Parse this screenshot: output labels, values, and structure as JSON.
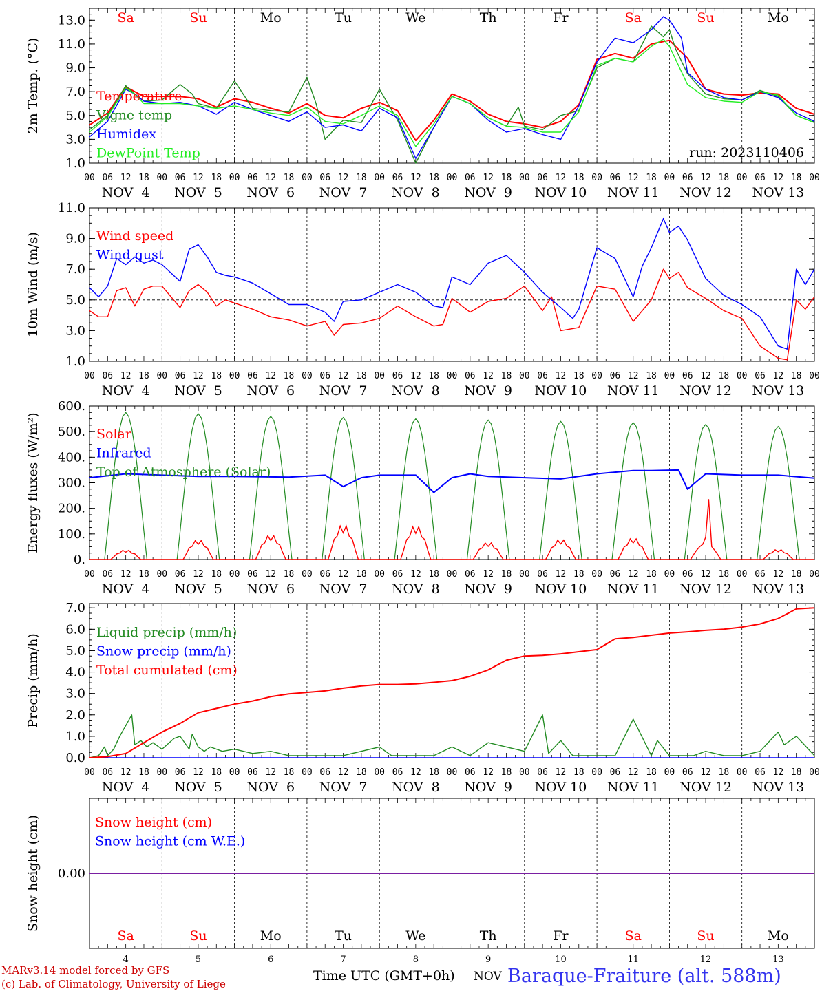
{
  "colors": {
    "red": "#ff0000",
    "green": "#228b22",
    "blue": "#0000ff",
    "lightgreen": "#22ee22",
    "purple": "#7a1fa2",
    "darkred": "#cc0000",
    "title_blue": "#3333ee",
    "axis": "#000000"
  },
  "days": [
    {
      "abbr": "Sa",
      "weekend": true,
      "date": "4"
    },
    {
      "abbr": "Su",
      "weekend": true,
      "date": "5"
    },
    {
      "abbr": "Mo",
      "weekend": false,
      "date": "6"
    },
    {
      "abbr": "Tu",
      "weekend": false,
      "date": "7"
    },
    {
      "abbr": "We",
      "weekend": false,
      "date": "8"
    },
    {
      "abbr": "Th",
      "weekend": false,
      "date": "9"
    },
    {
      "abbr": "Fr",
      "weekend": false,
      "date": "10"
    },
    {
      "abbr": "Sa",
      "weekend": true,
      "date": "11"
    },
    {
      "abbr": "Su",
      "weekend": true,
      "date": "12"
    },
    {
      "abbr": "Mo",
      "weekend": false,
      "date": "13"
    }
  ],
  "date_labels": [
    "NOV  4",
    "NOV  5",
    "NOV  6",
    "NOV  7",
    "NOV  8",
    "NOV  9",
    "NOV 10",
    "NOV 11",
    "NOV 12",
    "NOV 13"
  ],
  "hour_ticks": [
    "00",
    "06",
    "12",
    "18"
  ],
  "hour_end": "00",
  "run_label": "run: 2023110406",
  "footer": {
    "model": "MARv3.14 model forced by GFS",
    "lab": "(c) Lab. of Climatology, University of Liege",
    "time_axis": "Time UTC (GMT+0h)",
    "month": "NOV",
    "station": "Baraque-Fraiture (alt. 588m)"
  },
  "chart_data": [
    {
      "type": "line",
      "id": "temperature",
      "ylabel": "2m Temp. (°C)",
      "ylim": [
        1.0,
        14.0
      ],
      "ytick_labels": [
        "1.0",
        "3.0",
        "5.0",
        "7.0",
        "9.0",
        "11.0",
        "13.0"
      ],
      "ytick_values": [
        1,
        3,
        5,
        7,
        9,
        11,
        13
      ],
      "x_unit": "hours since NOV 4 00 UTC",
      "series": [
        {
          "name": "Temperature",
          "color": "red",
          "x": [
            0,
            6,
            12,
            15,
            18,
            24,
            30,
            36,
            42,
            48,
            54,
            60,
            66,
            72,
            78,
            84,
            90,
            96,
            102,
            108,
            114,
            120,
            126,
            132,
            138,
            144,
            150,
            156,
            162,
            168,
            174,
            180,
            186,
            192,
            198,
            204,
            210,
            216,
            222,
            228,
            234,
            240
          ],
          "y": [
            4.2,
            5.2,
            7.4,
            7.0,
            6.6,
            6.6,
            6.6,
            6.4,
            5.7,
            6.4,
            6.1,
            5.6,
            5.2,
            6.0,
            5.0,
            4.8,
            5.6,
            6.1,
            5.4,
            2.9,
            4.6,
            6.8,
            6.2,
            5.1,
            4.5,
            4.3,
            4.0,
            4.5,
            5.9,
            9.7,
            10.2,
            9.8,
            11.0,
            11.3,
            9.8,
            7.2,
            6.8,
            6.7,
            6.9,
            6.8,
            5.6,
            5.1
          ]
        },
        {
          "name": "Vigne temp",
          "color": "green",
          "x": [
            0,
            6,
            12,
            15,
            18,
            24,
            30,
            34,
            36,
            42,
            48,
            54,
            60,
            66,
            72,
            75,
            78,
            84,
            90,
            96,
            102,
            108,
            114,
            120,
            126,
            132,
            138,
            142,
            144,
            150,
            156,
            162,
            168,
            174,
            180,
            186,
            190,
            192,
            194,
            198,
            204,
            210,
            216,
            222,
            228,
            234,
            240
          ],
          "y": [
            3.8,
            5.0,
            7.5,
            6.8,
            6.2,
            6.3,
            7.6,
            6.8,
            6.0,
            5.6,
            7.9,
            5.6,
            5.4,
            5.3,
            8.2,
            6.0,
            3.0,
            4.6,
            4.4,
            7.2,
            4.6,
            1.0,
            4.0,
            6.6,
            6.0,
            4.8,
            4.1,
            5.7,
            4.1,
            3.8,
            5.0,
            5.4,
            9.0,
            9.8,
            9.5,
            12.5,
            11.6,
            12.2,
            10.6,
            8.5,
            6.8,
            6.4,
            6.3,
            7.1,
            6.6,
            5.0,
            4.4
          ]
        },
        {
          "name": "Humidex",
          "color": "blue",
          "x": [
            0,
            6,
            12,
            15,
            18,
            24,
            30,
            36,
            42,
            48,
            54,
            60,
            66,
            72,
            78,
            84,
            90,
            96,
            102,
            108,
            114,
            120,
            126,
            132,
            138,
            144,
            150,
            156,
            162,
            168,
            174,
            180,
            186,
            190,
            192,
            196,
            198,
            204,
            210,
            216,
            222,
            228,
            234,
            240
          ],
          "y": [
            3.2,
            4.5,
            7.2,
            6.8,
            6.2,
            6.0,
            6.1,
            5.8,
            5.1,
            6.1,
            5.5,
            5.0,
            4.5,
            5.3,
            4.0,
            4.2,
            3.7,
            5.6,
            4.8,
            1.4,
            4.0,
            6.6,
            6.0,
            4.6,
            3.6,
            3.9,
            3.4,
            3.0,
            5.8,
            9.5,
            11.5,
            11.1,
            12.2,
            13.3,
            13.0,
            11.5,
            8.6,
            7.2,
            6.5,
            6.3,
            7.0,
            6.5,
            5.2,
            4.5
          ]
        },
        {
          "name": "DewPoint Temp",
          "color": "lightgreen",
          "x": [
            0,
            6,
            12,
            15,
            18,
            24,
            30,
            36,
            42,
            48,
            54,
            60,
            66,
            72,
            78,
            84,
            90,
            96,
            102,
            108,
            114,
            120,
            126,
            132,
            138,
            144,
            150,
            156,
            162,
            168,
            174,
            180,
            186,
            190,
            192,
            198,
            204,
            210,
            216,
            222,
            228,
            234,
            240
          ],
          "y": [
            3.6,
            4.9,
            7.3,
            6.8,
            6.0,
            6.0,
            6.0,
            5.8,
            5.6,
            5.8,
            5.5,
            5.2,
            5.0,
            5.7,
            4.5,
            4.3,
            5.0,
            5.8,
            5.0,
            2.4,
            4.3,
            6.6,
            6.0,
            4.8,
            4.1,
            4.0,
            3.6,
            3.6,
            5.3,
            9.2,
            9.8,
            9.5,
            10.8,
            11.4,
            10.8,
            7.6,
            6.5,
            6.2,
            6.1,
            7.0,
            6.7,
            5.0,
            4.4
          ]
        }
      ]
    },
    {
      "type": "line",
      "id": "wind",
      "ylabel": "10m Wind (m/s)",
      "ylim": [
        1.0,
        11.0
      ],
      "ytick_labels": [
        "1.0",
        "3.0",
        "5.0",
        "7.0",
        "9.0",
        "11.0"
      ],
      "ytick_values": [
        1,
        3,
        5,
        7,
        9,
        11
      ],
      "reference_line": 5.0,
      "series": [
        {
          "name": "Wind speed",
          "color": "red",
          "x": [
            0,
            3,
            6,
            9,
            12,
            15,
            18,
            21,
            24,
            30,
            33,
            36,
            39,
            42,
            45,
            48,
            54,
            60,
            66,
            72,
            78,
            81,
            84,
            90,
            96,
            102,
            108,
            114,
            117,
            120,
            126,
            132,
            138,
            144,
            150,
            153,
            156,
            162,
            168,
            174,
            180,
            186,
            190,
            192,
            195,
            198,
            204,
            210,
            216,
            222,
            228,
            231,
            234,
            237,
            240
          ],
          "y": [
            4.3,
            3.9,
            3.9,
            5.6,
            5.8,
            4.6,
            5.7,
            5.9,
            5.9,
            4.5,
            5.6,
            6.0,
            5.5,
            4.6,
            5.0,
            4.8,
            4.4,
            3.9,
            3.7,
            3.3,
            3.6,
            2.7,
            3.4,
            3.5,
            3.8,
            4.6,
            3.9,
            3.3,
            3.4,
            5.1,
            4.2,
            4.9,
            5.1,
            5.9,
            4.3,
            5.2,
            3.0,
            3.2,
            5.9,
            5.7,
            3.6,
            5.0,
            7.0,
            6.4,
            6.8,
            5.8,
            5.1,
            4.3,
            3.8,
            2.0,
            1.2,
            1.1,
            5.0,
            4.4,
            5.2
          ]
        },
        {
          "name": "Wind gust",
          "color": "blue",
          "x": [
            0,
            3,
            6,
            9,
            12,
            15,
            18,
            21,
            24,
            30,
            33,
            36,
            39,
            42,
            45,
            48,
            54,
            60,
            66,
            72,
            78,
            81,
            84,
            90,
            96,
            102,
            108,
            114,
            117,
            120,
            126,
            132,
            138,
            144,
            150,
            153,
            156,
            160,
            162,
            168,
            174,
            180,
            183,
            186,
            190,
            192,
            195,
            198,
            204,
            210,
            216,
            222,
            228,
            231,
            234,
            237,
            240
          ],
          "y": [
            5.8,
            5.2,
            5.9,
            7.7,
            7.3,
            7.8,
            7.4,
            7.6,
            7.3,
            6.2,
            8.3,
            8.6,
            7.8,
            6.8,
            6.6,
            6.5,
            6.1,
            5.4,
            4.7,
            4.7,
            4.2,
            3.6,
            4.9,
            5.0,
            5.5,
            6.0,
            5.5,
            4.6,
            4.5,
            6.5,
            6.0,
            7.4,
            7.9,
            6.8,
            5.5,
            5.0,
            4.5,
            3.8,
            4.4,
            8.4,
            7.7,
            5.2,
            7.2,
            8.4,
            10.3,
            9.4,
            9.8,
            8.9,
            6.4,
            5.3,
            4.7,
            3.9,
            2.0,
            1.8,
            7.0,
            6.0,
            7.0
          ]
        }
      ]
    },
    {
      "type": "line",
      "id": "energy",
      "ylabel": "Energy fluxes (W/m²)",
      "ylim": [
        0,
        600
      ],
      "ytick_labels": [
        "0.",
        "100.",
        "200.",
        "300.",
        "400.",
        "500.",
        "600."
      ],
      "ytick_values": [
        0,
        100,
        200,
        300,
        400,
        500,
        600
      ],
      "toa_peaks": [
        575,
        570,
        560,
        555,
        550,
        545,
        540,
        535,
        528,
        520
      ],
      "solar_peaks": [
        38,
        78,
        98,
        138,
        135,
        68,
        80,
        85,
        248,
        40
      ],
      "series": [
        {
          "name": "Solar",
          "color": "red"
        },
        {
          "name": "Infrared",
          "color": "blue",
          "x": [
            0,
            12,
            24,
            36,
            48,
            66,
            78,
            84,
            90,
            96,
            108,
            114,
            120,
            126,
            132,
            144,
            156,
            168,
            180,
            186,
            195,
            198,
            204,
            216,
            228,
            240
          ],
          "y": [
            320,
            335,
            330,
            325,
            325,
            322,
            330,
            285,
            320,
            330,
            330,
            262,
            320,
            335,
            325,
            320,
            315,
            335,
            348,
            348,
            350,
            275,
            335,
            330,
            330,
            318
          ]
        },
        {
          "name": "Top of Atmosphere (Solar)",
          "color": "green"
        }
      ]
    },
    {
      "type": "line",
      "id": "precip",
      "ylabel": "Precip (mm/h)",
      "ylim": [
        0,
        7.2
      ],
      "ytick_labels": [
        "0.0",
        "1.0",
        "2.0",
        "3.0",
        "4.0",
        "5.0",
        "6.0",
        "7.0"
      ],
      "ytick_values": [
        0,
        1,
        2,
        3,
        4,
        5,
        6,
        7
      ],
      "series": [
        {
          "name": "Liquid precip (mm/h)",
          "color": "green",
          "x": [
            0,
            3,
            5,
            6,
            8,
            10,
            12,
            14,
            15,
            17,
            19,
            21,
            24,
            28,
            30,
            33,
            34,
            36,
            38,
            40,
            44,
            48,
            54,
            60,
            66,
            72,
            84,
            96,
            100,
            108,
            114,
            120,
            126,
            132,
            144,
            150,
            152,
            156,
            160,
            168,
            174,
            180,
            186,
            188,
            192,
            200,
            204,
            210,
            216,
            222,
            228,
            230,
            234,
            240
          ],
          "y": [
            0.0,
            0.1,
            0.5,
            0.1,
            0.4,
            1.0,
            1.5,
            2.0,
            0.6,
            0.8,
            0.5,
            0.7,
            0.4,
            0.9,
            1.0,
            0.4,
            1.1,
            0.5,
            0.3,
            0.5,
            0.3,
            0.4,
            0.2,
            0.3,
            0.1,
            0.1,
            0.1,
            0.5,
            0.1,
            0.1,
            0.1,
            0.5,
            0.1,
            0.7,
            0.3,
            2.0,
            0.2,
            0.8,
            0.1,
            0.1,
            0.1,
            1.8,
            0.1,
            0.8,
            0.1,
            0.1,
            0.3,
            0.1,
            0.1,
            0.3,
            1.2,
            0.6,
            1.0,
            0.1
          ]
        },
        {
          "name": "Snow precip (mm/h)",
          "color": "blue",
          "x": [
            0,
            240
          ],
          "y": [
            0,
            0
          ]
        },
        {
          "name": "Total cumulated (cm)",
          "color": "red",
          "x": [
            0,
            6,
            12,
            18,
            24,
            30,
            36,
            42,
            48,
            54,
            60,
            66,
            72,
            78,
            84,
            90,
            96,
            102,
            108,
            114,
            120,
            126,
            132,
            138,
            144,
            150,
            156,
            162,
            168,
            174,
            180,
            186,
            192,
            198,
            204,
            210,
            216,
            222,
            228,
            234,
            240
          ],
          "y": [
            0.0,
            0.05,
            0.2,
            0.7,
            1.2,
            1.6,
            2.1,
            2.3,
            2.5,
            2.65,
            2.85,
            2.98,
            3.05,
            3.12,
            3.25,
            3.35,
            3.42,
            3.42,
            3.45,
            3.52,
            3.6,
            3.8,
            4.1,
            4.55,
            4.75,
            4.78,
            4.85,
            4.95,
            5.05,
            5.55,
            5.62,
            5.72,
            5.82,
            5.88,
            5.95,
            6.0,
            6.1,
            6.25,
            6.5,
            6.95,
            7.0
          ]
        }
      ]
    },
    {
      "type": "line",
      "id": "snow",
      "ylabel": "Snow height (cm)",
      "ylim": [
        -1,
        1
      ],
      "ytick_labels": [
        "0.00"
      ],
      "ytick_values": [
        0
      ],
      "series": [
        {
          "name": "Snow height (cm)",
          "color": "red",
          "x": [
            0,
            240
          ],
          "y": [
            0,
            0
          ]
        },
        {
          "name": "Snow height (cm W.E.)",
          "color": "blue",
          "x": [
            0,
            240
          ],
          "y": [
            0,
            0
          ]
        }
      ]
    }
  ]
}
